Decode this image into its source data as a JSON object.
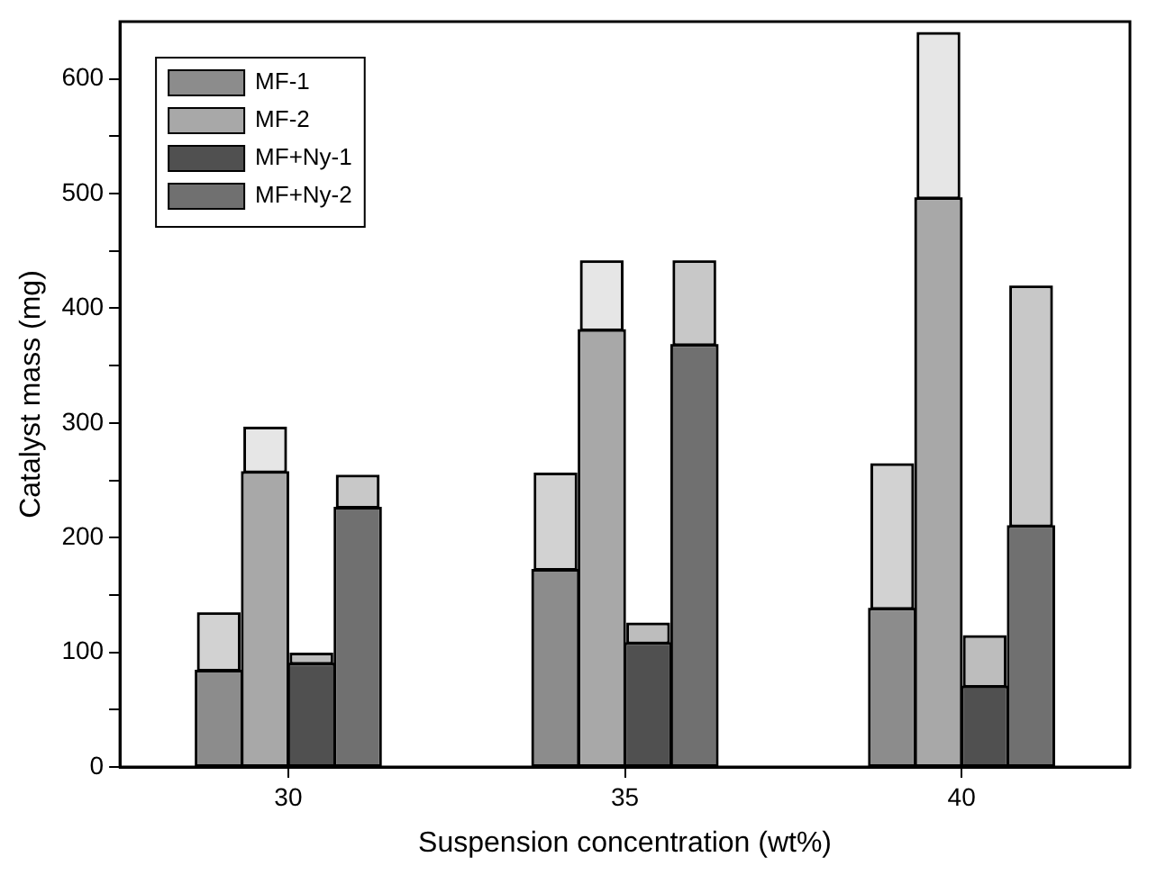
{
  "chart_data": {
    "type": "bar",
    "xlabel": "Suspension concentration (wt%)",
    "ylabel": "Catalyst mass (mg)",
    "categories": [
      "30",
      "35",
      "40"
    ],
    "legend": "top left",
    "grid": false,
    "ylim": [
      0,
      650
    ],
    "yticks": [
      0,
      {
        "value": 50,
        "label": null
      },
      100,
      {
        "value": 150,
        "label": null
      },
      200,
      {
        "value": 250,
        "label": null
      },
      300,
      {
        "value": 350,
        "label": null
      },
      400,
      {
        "value": 450,
        "label": null
      },
      500,
      {
        "value": 550,
        "label": null
      },
      600
    ],
    "series": [
      {
        "name": "MF-1",
        "color": "#8c8c8c",
        "values": [
          84,
          172,
          138
        ]
      },
      {
        "color": "#d2d2d2",
        "values": [
          50,
          84,
          126
        ],
        "base": [
          84,
          172,
          138
        ]
      },
      {
        "name": "MF-2",
        "color": "#a8a8a8",
        "values": [
          257,
          381,
          496
        ]
      },
      {
        "color": "#e6e6e6",
        "values": [
          39,
          60,
          144
        ],
        "base": [
          257,
          381,
          496
        ]
      },
      {
        "name": "MF+Ny-1",
        "color": "#505050",
        "values": [
          90,
          108,
          70
        ]
      },
      {
        "color": "#bdbdbd",
        "values": [
          9,
          17,
          44
        ],
        "base": [
          90,
          108,
          70
        ]
      },
      {
        "name": "MF+Ny-2",
        "color": "#707070",
        "values": [
          226,
          368,
          210
        ]
      },
      {
        "color": "#c8c8c8",
        "values": [
          28,
          73,
          209
        ],
        "base": [
          226,
          368,
          210
        ]
      }
    ]
  }
}
